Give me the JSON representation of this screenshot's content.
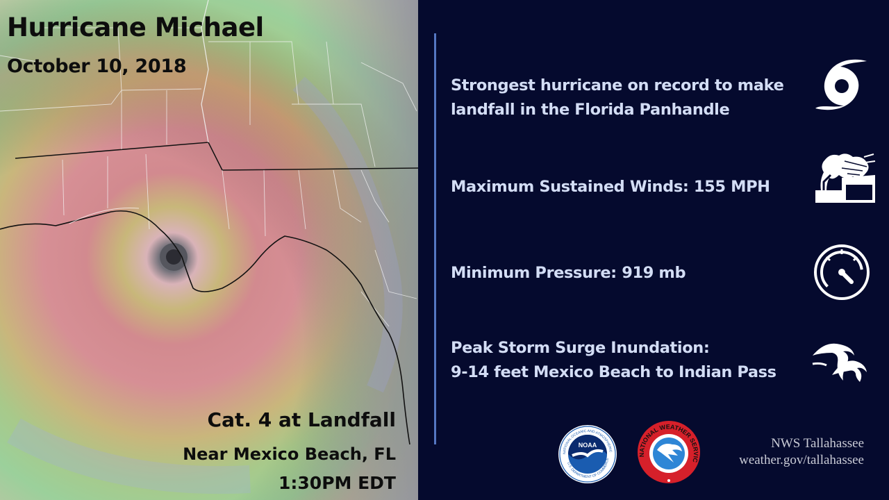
{
  "satellite": {
    "title": "Hurricane Michael",
    "date": "October 10, 2018",
    "category": "Cat. 4 at Landfall",
    "location": "Near Mexico Beach, FL",
    "time": "1:30PM EDT"
  },
  "facts": [
    {
      "icon": "hurricane-icon",
      "lines": [
        "Strongest hurricane on record to make",
        "landfall in the Florida  Panhandle"
      ]
    },
    {
      "icon": "wind-tree-icon",
      "lines": [
        "Maximum Sustained Winds: 155 MPH"
      ]
    },
    {
      "icon": "pressure-gauge-icon",
      "lines": [
        "Minimum Pressure: 919 mb"
      ]
    },
    {
      "icon": "storm-surge-icon",
      "lines": [
        "Peak Storm Surge Inundation:",
        "9-14 feet Mexico Beach to Indian Pass"
      ]
    }
  ],
  "logos": {
    "noaa_text": "NOAA",
    "noaa_ring": "NATIONAL OCEANIC AND ATMOSPHERIC ADMINISTRATION",
    "noaa_ring_bottom": "U.S. DEPARTMENT OF COMMERCE",
    "nws_ring": "NATIONAL WEATHER SERVICE"
  },
  "credit": {
    "office": "NWS Tallahassee",
    "website": "weather.gov/tallahassee"
  },
  "colors": {
    "background": "#050a2e",
    "fact_text": "#d3ddf5",
    "divider": "#5577c2",
    "nws_red": "#d6202a",
    "noaa_blue": "#1a5cb0"
  }
}
